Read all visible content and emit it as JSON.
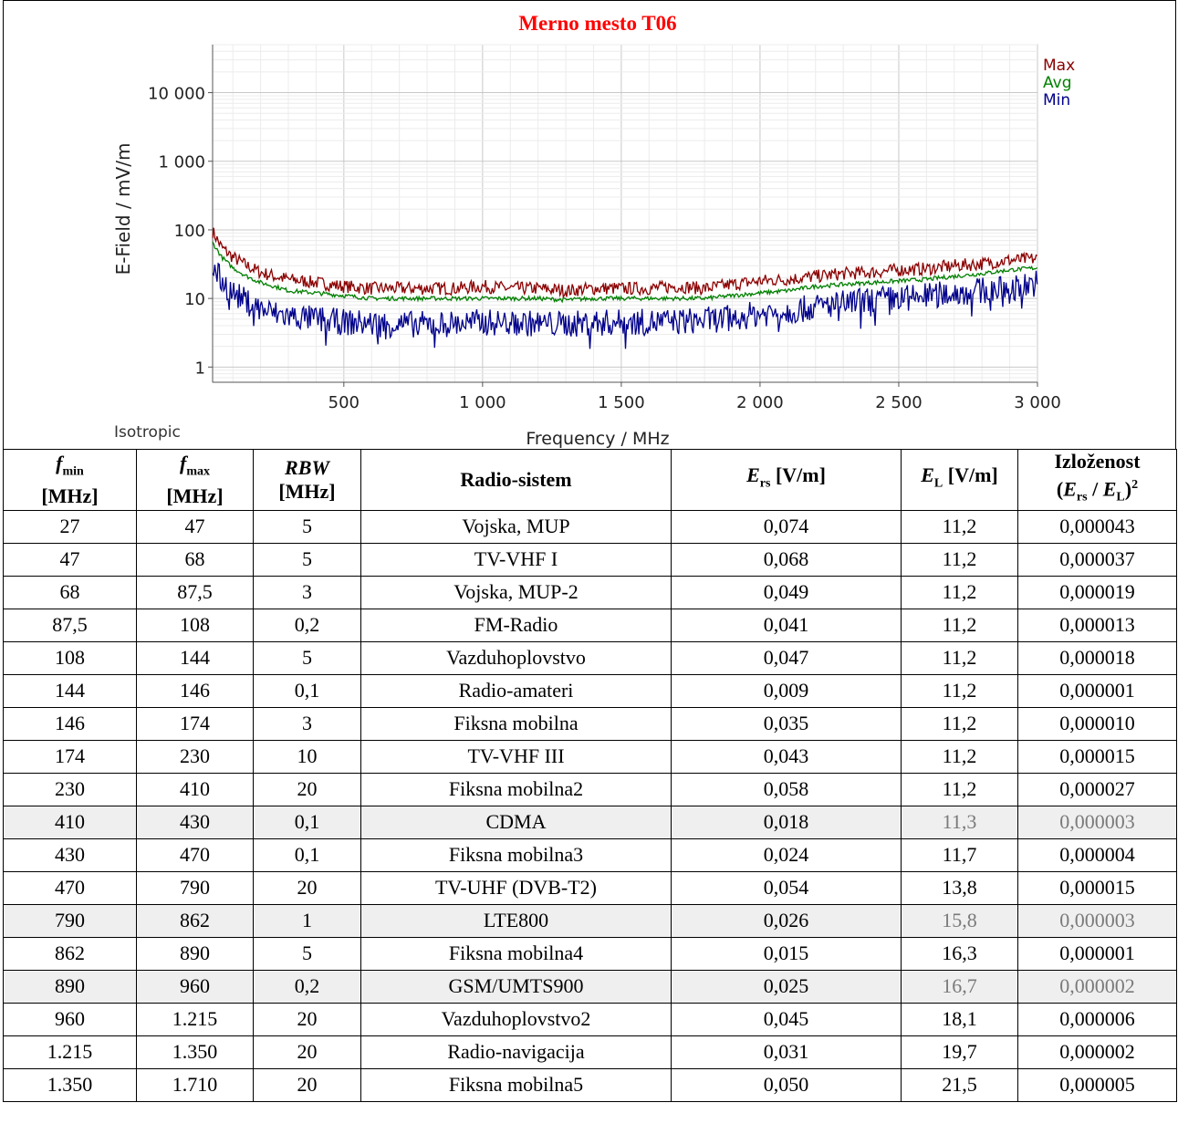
{
  "chart_data": {
    "type": "line",
    "title": "Merno mesto T06",
    "xlabel": "Frequency / MHz",
    "ylabel": "E-Field / mV/m",
    "corner_label": "Isotropic",
    "y_scale": "log",
    "xlim": [
      27,
      3000
    ],
    "ylim": [
      0.6,
      50000
    ],
    "x_ticks": [
      500,
      1000,
      1500,
      2000,
      2500,
      3000
    ],
    "x_tick_labels": [
      "500",
      "1 000",
      "1 500",
      "2 000",
      "2 500",
      "3 000"
    ],
    "y_ticks": [
      1,
      10,
      100,
      1000,
      10000
    ],
    "y_tick_labels": [
      "1",
      "10",
      "100",
      "1 000",
      "10 000"
    ],
    "grid": true,
    "legend_position": "top-right",
    "series": [
      {
        "name": "Max",
        "color": "#8b0000",
        "x": [
          27,
          60,
          100,
          150,
          200,
          250,
          300,
          400,
          500,
          600,
          700,
          800,
          900,
          1000,
          1100,
          1200,
          1300,
          1400,
          1500,
          1600,
          1700,
          1800,
          1900,
          2000,
          2100,
          2200,
          2300,
          2400,
          2500,
          2600,
          2700,
          2800,
          2900,
          3000
        ],
        "values": [
          95,
          55,
          40,
          30,
          24,
          21,
          19,
          17,
          15,
          14,
          14,
          14,
          14,
          15,
          14,
          14,
          13,
          14,
          14,
          14,
          15,
          14,
          16,
          18,
          19,
          21,
          23,
          24,
          26,
          27,
          30,
          32,
          36,
          38
        ]
      },
      {
        "name": "Avg",
        "color": "#008000",
        "x": [
          27,
          60,
          100,
          150,
          200,
          250,
          300,
          400,
          500,
          600,
          700,
          800,
          900,
          1000,
          1100,
          1200,
          1300,
          1400,
          1500,
          1600,
          1700,
          1800,
          1900,
          2000,
          2100,
          2200,
          2300,
          2400,
          2500,
          2600,
          2700,
          2800,
          2900,
          3000
        ],
        "values": [
          65,
          40,
          28,
          21,
          17,
          15,
          13,
          12,
          11,
          10,
          10,
          10,
          10,
          10,
          10,
          10,
          9.5,
          10,
          10,
          10,
          10,
          10,
          11,
          12,
          13,
          15,
          16,
          17,
          18,
          19,
          21,
          23,
          26,
          28
        ]
      },
      {
        "name": "Min",
        "color": "#00008b",
        "x": [
          27,
          60,
          100,
          150,
          200,
          250,
          300,
          400,
          500,
          600,
          700,
          800,
          900,
          1000,
          1100,
          1200,
          1300,
          1400,
          1500,
          1600,
          1700,
          1800,
          1900,
          2000,
          2100,
          2200,
          2300,
          2400,
          2500,
          2600,
          2700,
          2800,
          2900,
          3000
        ],
        "values": [
          28,
          18,
          12,
          9,
          7,
          6,
          5.5,
          5,
          4.5,
          4.3,
          4.2,
          4.2,
          4.3,
          4.5,
          4.4,
          4.3,
          4.2,
          4.4,
          4.5,
          4.5,
          4.6,
          4.8,
          5.2,
          6,
          6.5,
          7.5,
          8.5,
          9.5,
          10,
          11,
          12,
          13,
          14,
          17
        ]
      }
    ]
  },
  "table": {
    "headers": {
      "fmin": "f",
      "fmin_sub": "min",
      "fmin_unit": "[MHz]",
      "fmax": "f",
      "fmax_sub": "max",
      "fmax_unit": "[MHz]",
      "rbw": "RBW",
      "rbw_unit": "[MHz]",
      "system": "Radio-sistem",
      "ers": "E",
      "ers_sub": "rs",
      "ers_unit": "[V/m]",
      "el": "E",
      "el_sub": "L",
      "el_unit": "[V/m]",
      "exp_title": "Izloženost",
      "exp_formula_open": "(",
      "exp_e1": "E",
      "exp_s1": "rs",
      "exp_slash": " / ",
      "exp_e2": "E",
      "exp_s2": "L",
      "exp_close": ")",
      "exp_pow": "2"
    },
    "rows": [
      {
        "fmin": "27",
        "fmax": "47",
        "rbw": "5",
        "system": "Vojska, MUP",
        "ers": "0,074",
        "el": "11,2",
        "exp": "0,000043"
      },
      {
        "fmin": "47",
        "fmax": "68",
        "rbw": "5",
        "system": "TV-VHF I",
        "ers": "0,068",
        "el": "11,2",
        "exp": "0,000037"
      },
      {
        "fmin": "68",
        "fmax": "87,5",
        "rbw": "3",
        "system": "Vojska, MUP-2",
        "ers": "0,049",
        "el": "11,2",
        "exp": "0,000019"
      },
      {
        "fmin": "87,5",
        "fmax": "108",
        "rbw": "0,2",
        "system": "FM-Radio",
        "ers": "0,041",
        "el": "11,2",
        "exp": "0,000013"
      },
      {
        "fmin": "108",
        "fmax": "144",
        "rbw": "5",
        "system": "Vazduhoplovstvo",
        "ers": "0,047",
        "el": "11,2",
        "exp": "0,000018"
      },
      {
        "fmin": "144",
        "fmax": "146",
        "rbw": "0,1",
        "system": "Radio-amateri",
        "ers": "0,009",
        "el": "11,2",
        "exp": "0,000001"
      },
      {
        "fmin": "146",
        "fmax": "174",
        "rbw": "3",
        "system": "Fiksna mobilna",
        "ers": "0,035",
        "el": "11,2",
        "exp": "0,000010"
      },
      {
        "fmin": "174",
        "fmax": "230",
        "rbw": "10",
        "system": "TV-VHF III",
        "ers": "0,043",
        "el": "11,2",
        "exp": "0,000015"
      },
      {
        "fmin": "230",
        "fmax": "410",
        "rbw": "20",
        "system": "Fiksna mobilna2",
        "ers": "0,058",
        "el": "11,2",
        "exp": "0,000027"
      },
      {
        "fmin": "410",
        "fmax": "430",
        "rbw": "0,1",
        "system": "CDMA",
        "ers": "0,018",
        "el": "11,3",
        "exp": "0,000003",
        "shaded": true
      },
      {
        "fmin": "430",
        "fmax": "470",
        "rbw": "0,1",
        "system": "Fiksna mobilna3",
        "ers": "0,024",
        "el": "11,7",
        "exp": "0,000004"
      },
      {
        "fmin": "470",
        "fmax": "790",
        "rbw": "20",
        "system": "TV-UHF (DVB-T2)",
        "ers": "0,054",
        "el": "13,8",
        "exp": "0,000015"
      },
      {
        "fmin": "790",
        "fmax": "862",
        "rbw": "1",
        "system": "LTE800",
        "ers": "0,026",
        "el": "15,8",
        "exp": "0,000003",
        "shaded": true
      },
      {
        "fmin": "862",
        "fmax": "890",
        "rbw": "5",
        "system": "Fiksna mobilna4",
        "ers": "0,015",
        "el": "16,3",
        "exp": "0,000001"
      },
      {
        "fmin": "890",
        "fmax": "960",
        "rbw": "0,2",
        "system": "GSM/UMTS900",
        "ers": "0,025",
        "el": "16,7",
        "exp": "0,000002",
        "shaded": true
      },
      {
        "fmin": "960",
        "fmax": "1.215",
        "rbw": "20",
        "system": "Vazduhoplovstvo2",
        "ers": "0,045",
        "el": "18,1",
        "exp": "0,000006"
      },
      {
        "fmin": "1.215",
        "fmax": "1.350",
        "rbw": "20",
        "system": "Radio-navigacija",
        "ers": "0,031",
        "el": "19,7",
        "exp": "0,000002"
      },
      {
        "fmin": "1.350",
        "fmax": "1.710",
        "rbw": "20",
        "system": "Fiksna mobilna5",
        "ers": "0,050",
        "el": "21,5",
        "exp": "0,000005"
      }
    ]
  }
}
